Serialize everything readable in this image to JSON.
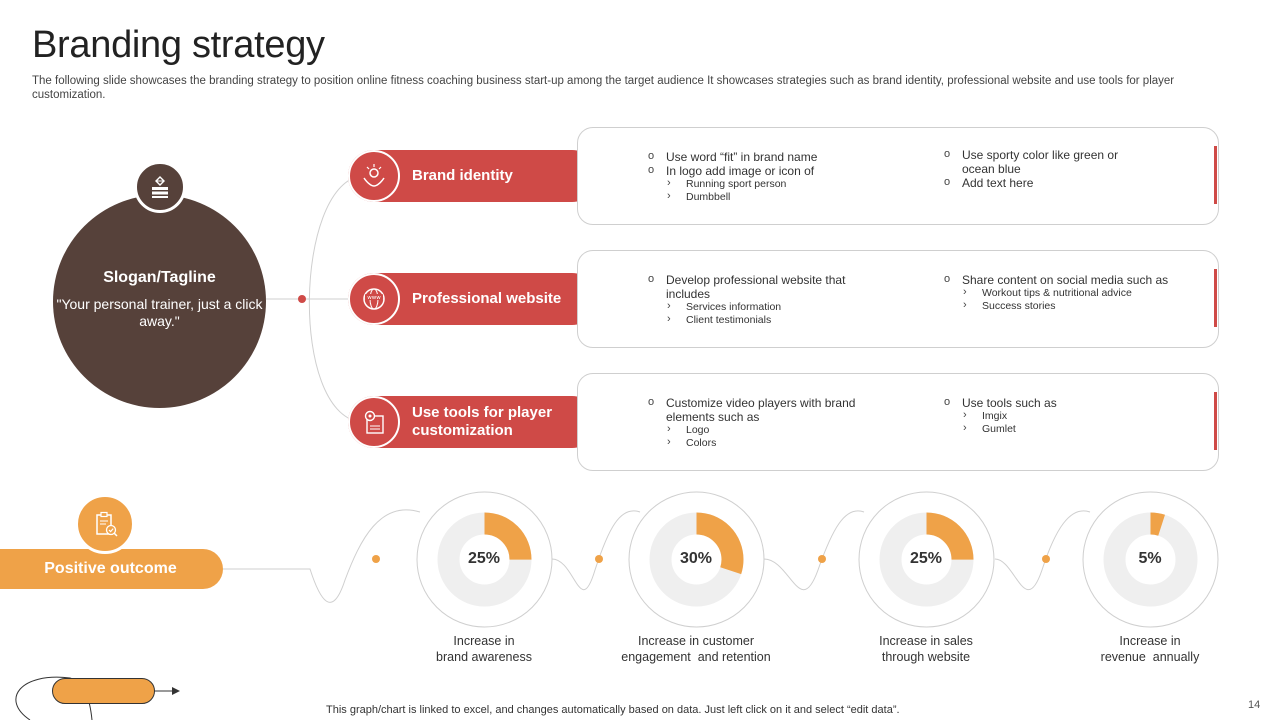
{
  "header": {
    "title": "Branding strategy",
    "subtitle": "The following slide showcases the branding strategy to position online fitness coaching business start-up among the target audience It showcases strategies such as brand identity, professional website and use tools for player customization."
  },
  "slogan": {
    "title": "Slogan/Tagline",
    "text": "\"Your personal trainer, just a click away.\"",
    "icon": "diamond-book-icon"
  },
  "strategies": [
    {
      "label": "Brand identity",
      "icon": "hands-award-icon",
      "col1": {
        "bullets": [
          "Use word “fit” in brand name",
          "In logo add image or icon of"
        ],
        "subs": [
          "Running sport person",
          "Dumbbell"
        ]
      },
      "col2": {
        "bullets": [
          "Use sporty color like green or ocean blue",
          "Add text here"
        ],
        "subs": []
      }
    },
    {
      "label": "Professional website",
      "icon": "www-globe-icon",
      "col1": {
        "bullets": [
          "Develop professional website that includes"
        ],
        "subs": [
          "Services information",
          "Client testimonials"
        ]
      },
      "col2": {
        "bullets": [
          "Share content on social media such as"
        ],
        "subs": [
          "Workout tips & nutritional advice",
          "Success stories"
        ]
      }
    },
    {
      "label": "Use tools for player customization",
      "icon": "gear-document-icon",
      "col1": {
        "bullets": [
          "Customize video players with brand elements such as"
        ],
        "subs": [
          "Logo",
          "Colors"
        ]
      },
      "col2": {
        "bullets": [
          "Use tools such as"
        ],
        "subs": [
          "Imgix",
          "Gumlet"
        ]
      }
    }
  ],
  "outcome": {
    "label": "Positive outcome",
    "icon": "clipboard-check-icon"
  },
  "chart_data": {
    "type": "pie",
    "items": [
      {
        "value": 25,
        "display": "25%",
        "label": [
          "Increase in",
          "brand awareness"
        ]
      },
      {
        "value": 30,
        "display": "30%",
        "label": [
          "Increase in customer",
          "engagement  and retention"
        ]
      },
      {
        "value": 25,
        "display": "25%",
        "label": [
          "Increase in sales",
          "through website"
        ]
      },
      {
        "value": 5,
        "display": "5%",
        "label": [
          "Increase in",
          "revenue  annually"
        ]
      }
    ]
  },
  "colors": {
    "accent_red": "#cf4a47",
    "accent_orange": "#efa248",
    "dark_brown": "#56413a",
    "donut_track": "#efefef"
  },
  "footer": {
    "note": "This graph/chart is linked to excel,  and changes automatically based on data. Just left click on it and select “edit data”.",
    "page_number": "14"
  }
}
